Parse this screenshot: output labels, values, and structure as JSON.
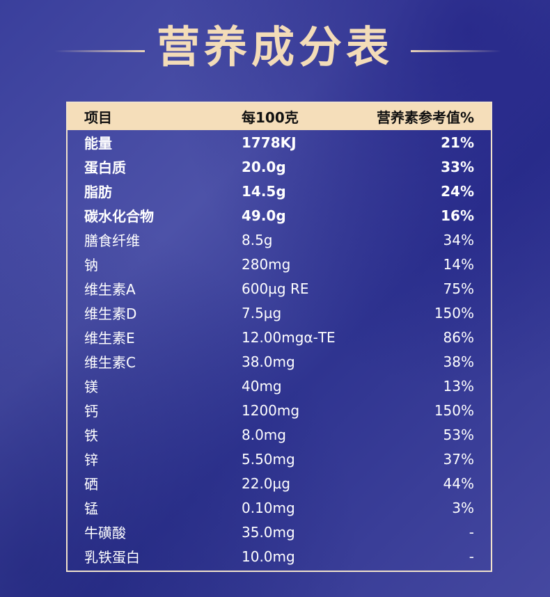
{
  "title": "营养成分表",
  "header": {
    "item": "项目",
    "per100": "每100克",
    "nrv": "营养素参考值%"
  },
  "rows": [
    {
      "name": "能量",
      "value": "1778KJ",
      "nrv": "21%",
      "bold": true
    },
    {
      "name": "蛋白质",
      "value": "20.0g",
      "nrv": "33%",
      "bold": true
    },
    {
      "name": "脂肪",
      "value": "14.5g",
      "nrv": "24%",
      "bold": true
    },
    {
      "name": "碳水化合物",
      "value": "49.0g",
      "nrv": "16%",
      "bold": true
    },
    {
      "name": "膳食纤维",
      "value": "8.5g",
      "nrv": "34%"
    },
    {
      "name": "钠",
      "value": "280mg",
      "nrv": "14%"
    },
    {
      "name": "维生素A",
      "value": "600µg RE",
      "nrv": "75%"
    },
    {
      "name": "维生素D",
      "value": "7.5µg",
      "nrv": "150%"
    },
    {
      "name": "维生素E",
      "value": "12.00mgα-TE",
      "nrv": "86%"
    },
    {
      "name": "维生素C",
      "value": "38.0mg",
      "nrv": "38%"
    },
    {
      "name": "镁",
      "value": "40mg",
      "nrv": "13%"
    },
    {
      "name": "钙",
      "value": "1200mg",
      "nrv": "150%"
    },
    {
      "name": "铁",
      "value": "8.0mg",
      "nrv": "53%"
    },
    {
      "name": "锌",
      "value": "5.50mg",
      "nrv": "37%"
    },
    {
      "name": "硒",
      "value": "22.0µg",
      "nrv": "44%"
    },
    {
      "name": "锰",
      "value": "0.10mg",
      "nrv": "3%"
    },
    {
      "name": "牛磺酸",
      "value": "35.0mg",
      "nrv": "-"
    },
    {
      "name": "乳铁蛋白",
      "value": "10.0mg",
      "nrv": "-"
    }
  ]
}
